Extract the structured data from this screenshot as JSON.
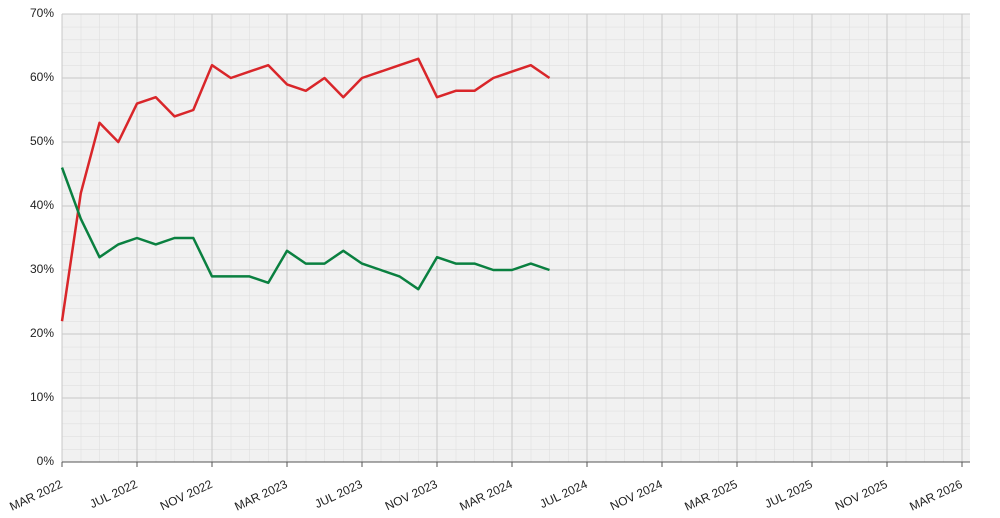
{
  "chart_data": {
    "type": "line",
    "x": [
      "2022-03",
      "2022-04",
      "2022-05",
      "2022-06",
      "2022-07",
      "2022-08",
      "2022-09",
      "2022-10",
      "2022-11",
      "2022-12",
      "2023-01",
      "2023-02",
      "2023-03",
      "2023-04",
      "2023-05",
      "2023-06",
      "2023-07",
      "2023-08",
      "2023-09",
      "2023-10",
      "2023-11",
      "2023-12",
      "2024-01",
      "2024-02",
      "2024-03",
      "2024-04",
      "2024-05"
    ],
    "series": [
      {
        "color": "#d9262a",
        "values": [
          22,
          42,
          53,
          50,
          56,
          57,
          54,
          55,
          62,
          60,
          61,
          62,
          59,
          58,
          60,
          57,
          60,
          61,
          62,
          63,
          57,
          58,
          58,
          60,
          61,
          62,
          60
        ]
      },
      {
        "color": "#0a8040",
        "values": [
          46,
          38,
          32,
          34,
          35,
          34,
          35,
          35,
          29,
          29,
          29,
          28,
          33,
          31,
          31,
          33,
          31,
          30,
          29,
          27,
          32,
          31,
          31,
          30,
          30,
          31,
          30
        ]
      }
    ],
    "ylim": [
      0,
      70
    ],
    "yticks": [
      {
        "value": 0,
        "label": "0%"
      },
      {
        "value": 10,
        "label": "10%"
      },
      {
        "value": 20,
        "label": "20%"
      },
      {
        "value": 30,
        "label": "30%"
      },
      {
        "value": 40,
        "label": "40%"
      },
      {
        "value": 50,
        "label": "50%"
      },
      {
        "value": 60,
        "label": "60%"
      },
      {
        "value": 70,
        "label": "70%"
      }
    ],
    "xlim": [
      "2022-03",
      "2026-03"
    ],
    "xticks": [
      {
        "value": "2022-03",
        "label": "MAR 2022"
      },
      {
        "value": "2022-07",
        "label": "JUL 2022"
      },
      {
        "value": "2022-11",
        "label": "NOV 2022"
      },
      {
        "value": "2023-03",
        "label": "MAR 2023"
      },
      {
        "value": "2023-07",
        "label": "JUL 2023"
      },
      {
        "value": "2023-11",
        "label": "NOV 2023"
      },
      {
        "value": "2024-03",
        "label": "MAR 2024"
      },
      {
        "value": "2024-07",
        "label": "JUL 2024"
      },
      {
        "value": "2024-11",
        "label": "NOV 2024"
      },
      {
        "value": "2025-03",
        "label": "MAR 2025"
      },
      {
        "value": "2025-07",
        "label": "JUL 2025"
      },
      {
        "value": "2025-11",
        "label": "NOV 2025"
      },
      {
        "value": "2026-03",
        "label": "MAR 2026"
      }
    ],
    "grid": true
  }
}
